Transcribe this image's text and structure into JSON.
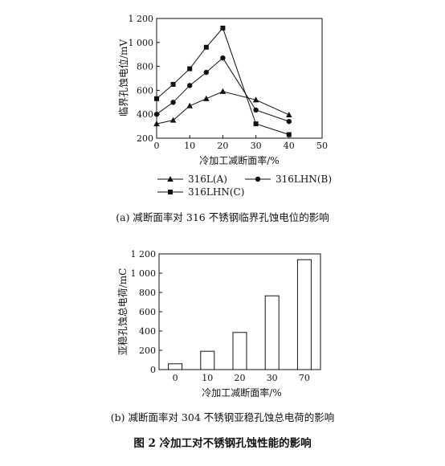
{
  "chart_data": [
    {
      "type": "line",
      "x": [
        0,
        5,
        10,
        15,
        20,
        30,
        40
      ],
      "xlim": [
        0,
        50
      ],
      "ylim": [
        200,
        1200
      ],
      "xticks": [
        "0",
        "10",
        "20",
        "30",
        "40",
        "50"
      ],
      "yticks": [
        "200",
        "400",
        "600",
        "800",
        "1 000",
        "1 200"
      ],
      "xlabel": "冷加工减断面率/%",
      "ylabel": "临界孔蚀电位/mV",
      "legend_position": "bottom",
      "series": [
        {
          "name": "316L(A)",
          "marker": "triangle",
          "values": [
            320,
            350,
            470,
            530,
            590,
            520,
            395
          ]
        },
        {
          "name": "316LHN(B)",
          "marker": "circle",
          "values": [
            400,
            500,
            640,
            750,
            870,
            435,
            340
          ]
        },
        {
          "name": "316LHN(C)",
          "marker": "square",
          "values": [
            530,
            650,
            780,
            960,
            1120,
            320,
            230
          ]
        }
      ],
      "caption": "(a) 减断面率对 316 不锈钢临界孔蚀电位的影响"
    },
    {
      "type": "bar",
      "categories": [
        "0",
        "10",
        "20",
        "30",
        "70"
      ],
      "values": [
        60,
        190,
        385,
        765,
        1140
      ],
      "ylim": [
        0,
        1200
      ],
      "yticks": [
        "0",
        "200",
        "400",
        "600",
        "800",
        "1 000",
        "1 200"
      ],
      "xlabel": "冷加工减断面率/%",
      "ylabel": "亚稳孔蚀总电荷/mC",
      "caption": "(b) 减断面率对 304 不锈钢亚稳孔蚀总电荷的影响"
    }
  ],
  "figure_title": "图 2   冷加工对不锈钢孔蚀性能的影响"
}
